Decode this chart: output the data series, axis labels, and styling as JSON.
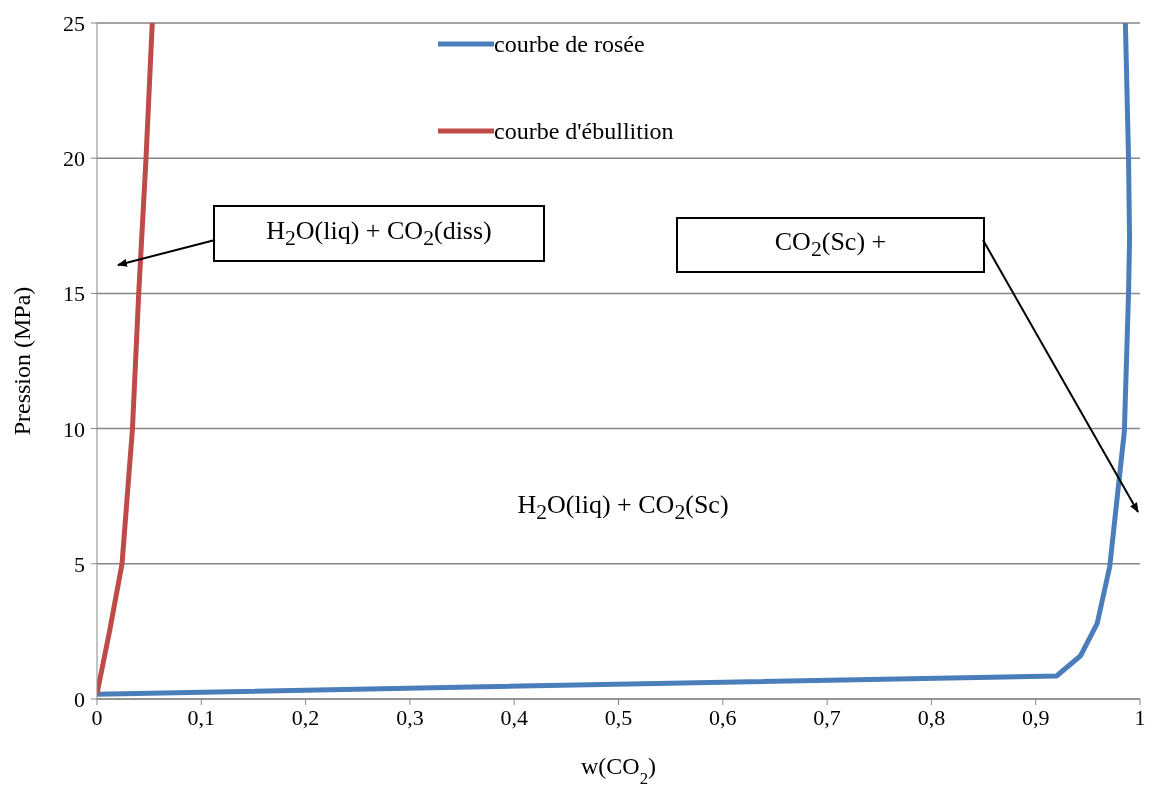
{
  "chart_data": {
    "type": "line",
    "xlabel": "w(CO$_{2}$)",
    "ylabel": "Pression (MPa)",
    "xlim": [
      0,
      1
    ],
    "xticks": [
      0,
      {
        "value": 0.1,
        "label": "0,1"
      },
      {
        "value": 0.2,
        "label": "0,2"
      },
      {
        "value": 0.3,
        "label": "0,3"
      },
      {
        "value": 0.4,
        "label": "0,4"
      },
      {
        "value": 0.5,
        "label": "0,5"
      },
      {
        "value": 0.6,
        "label": "0,6"
      },
      {
        "value": 0.7,
        "label": "0,7"
      },
      {
        "value": 0.8,
        "label": "0,8"
      },
      {
        "value": 0.9,
        "label": "0,9"
      },
      1
    ],
    "ylim": [
      0,
      25
    ],
    "yticks": [
      0,
      5,
      10,
      15,
      20,
      25
    ],
    "grid": "y",
    "legend": "top",
    "marker": "none",
    "line_style": "solid",
    "series": [
      {
        "name": "courbe de rosée",
        "color": "#4a7ebb",
        "x": [
          0,
          0.92,
          0.943,
          0.959,
          0.971,
          0.978,
          0.985,
          0.989,
          0.99,
          0.989,
          0.986
        ],
        "values": [
          0.18,
          0.85,
          1.6,
          2.8,
          4.9,
          7.4,
          9.9,
          15,
          17,
          20,
          25
        ]
      },
      {
        "name": "courbe d'ébullition",
        "color": "#be4b48",
        "x": [
          0,
          0.012,
          0.024,
          0.034,
          0.04,
          0.047,
          0.053
        ],
        "values": [
          0.2,
          2.5,
          5,
          10,
          15,
          20,
          25
        ]
      }
    ],
    "annotations": [
      "H$_{2}$O(liq) + CO$_{2}$(diss)",
      "CO$_{2}$(Sc) +",
      "H$_{2}$O(liq) + CO$_{2}$(Sc)"
    ]
  }
}
